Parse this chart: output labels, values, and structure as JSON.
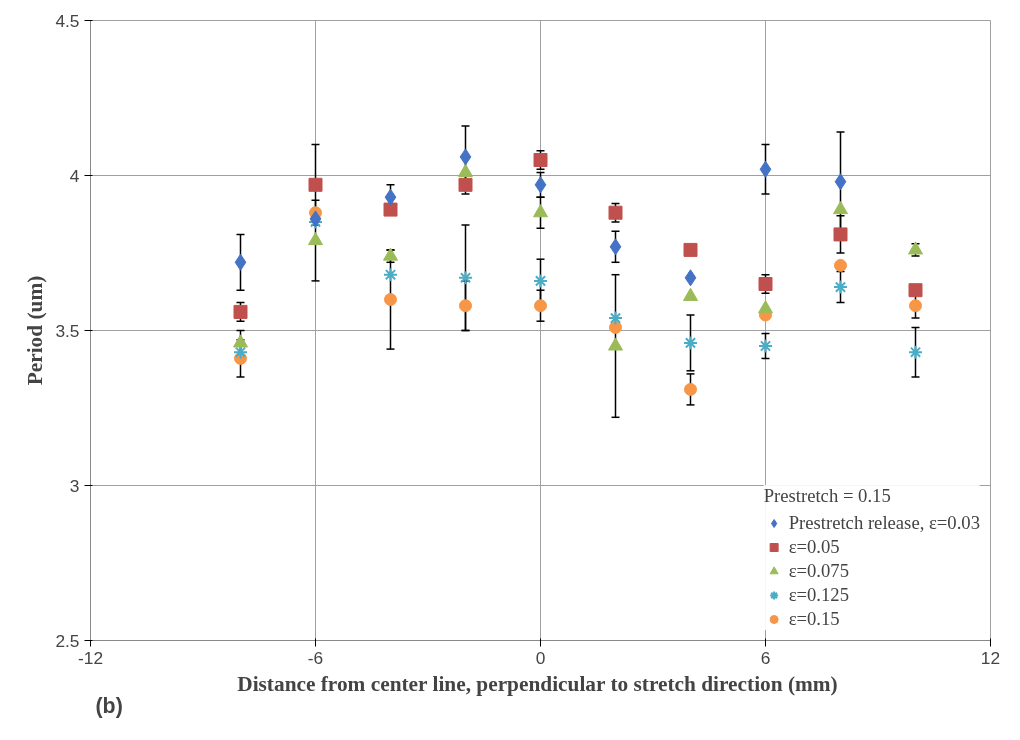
{
  "chart_data": {
    "type": "scatter",
    "xlabel": "Distance from  center line, perpendicular to stretch direction (mm)",
    "ylabel": "Period (um)",
    "legend_title": "Prestretch = 0.15",
    "x": [
      -8,
      -6,
      -4,
      -2,
      0,
      2,
      4,
      6,
      8,
      10
    ],
    "series": [
      {
        "name": "Prestretch release, ε=0.03",
        "color": "#4472c4",
        "marker": "diamond",
        "values": [
          3.72,
          3.86,
          3.93,
          4.06,
          3.97,
          3.77,
          3.67,
          4.02,
          3.98,
          null
        ],
        "errors": [
          0.09,
          null,
          0.04,
          0.1,
          0.04,
          0.05,
          null,
          0.08,
          0.16,
          null
        ]
      },
      {
        "name": "ε=0.05",
        "color": "#c0504d",
        "marker": "square",
        "values": [
          3.56,
          3.97,
          3.89,
          3.97,
          4.05,
          3.88,
          3.76,
          3.65,
          3.81,
          3.63
        ],
        "errors": [
          0.03,
          0.13,
          null,
          0.03,
          0.03,
          0.03,
          null,
          0.03,
          0.06,
          null
        ]
      },
      {
        "name": "ε=0.075",
        "color": "#9bbb59",
        "marker": "triangle",
        "values": [
          3.46,
          3.79,
          3.74,
          4.01,
          3.88,
          3.45,
          3.61,
          3.57,
          3.89,
          3.76
        ],
        "errors": [
          0.04,
          0.13,
          0.02,
          null,
          0.05,
          0.23,
          null,
          null,
          null,
          0.02
        ]
      },
      {
        "name": "ε=0.125",
        "color": "#4bacc6",
        "marker": "cross",
        "values": [
          3.43,
          3.85,
          3.68,
          3.67,
          3.66,
          3.54,
          3.46,
          3.45,
          3.64,
          3.43
        ],
        "errors": [
          null,
          null,
          null,
          0.17,
          0.07,
          null,
          0.09,
          0.04,
          0.05,
          0.08
        ]
      },
      {
        "name": "ε=0.15",
        "color": "#f79646",
        "marker": "circle",
        "values": [
          3.41,
          3.88,
          3.6,
          3.58,
          3.58,
          3.51,
          3.31,
          3.55,
          3.71,
          3.58
        ],
        "errors": [
          0.06,
          null,
          0.16,
          0.08,
          0.05,
          null,
          0.05,
          null,
          null,
          0.04
        ]
      }
    ],
    "xlim": [
      -12,
      12
    ],
    "xticks": [
      -12,
      -6,
      0,
      6,
      12
    ],
    "ylim": [
      2.5,
      4.5
    ],
    "yticks": [
      2.5,
      3,
      3.5,
      4,
      4.5
    ],
    "grid": true,
    "legend": "bottom right",
    "annotations": [
      "(b)"
    ]
  }
}
